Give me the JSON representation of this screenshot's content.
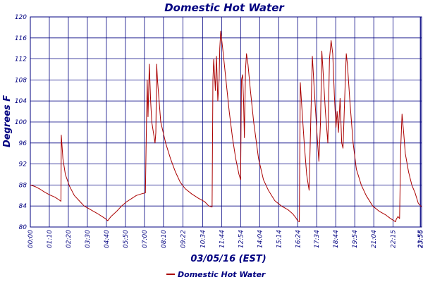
{
  "chart_data": {
    "type": "line",
    "title": "Domestic Hot Water",
    "xlabel": "03/05/16 (EST)",
    "ylabel": "Degrees F",
    "ylim": [
      80,
      120
    ],
    "yticks": [
      80,
      84,
      88,
      92,
      96,
      100,
      104,
      108,
      112,
      116,
      120
    ],
    "x_unit": "hours",
    "xlim": [
      0,
      24
    ],
    "xticks": [
      {
        "label": "00:00",
        "x": 0
      },
      {
        "label": "01:10",
        "x": 1.1667
      },
      {
        "label": "02:20",
        "x": 2.3333
      },
      {
        "label": "03:30",
        "x": 3.5
      },
      {
        "label": "04:40",
        "x": 4.6667
      },
      {
        "label": "05:50",
        "x": 5.8333
      },
      {
        "label": "07:00",
        "x": 7.0
      },
      {
        "label": "08:10",
        "x": 8.1667
      },
      {
        "label": "09:22",
        "x": 9.3667
      },
      {
        "label": "10:34",
        "x": 10.5667
      },
      {
        "label": "11:44",
        "x": 11.7333
      },
      {
        "label": "12:54",
        "x": 12.9
      },
      {
        "label": "14:04",
        "x": 14.0667
      },
      {
        "label": "15:14",
        "x": 15.2333
      },
      {
        "label": "16:24",
        "x": 16.4
      },
      {
        "label": "17:34",
        "x": 17.5667
      },
      {
        "label": "18:44",
        "x": 18.7333
      },
      {
        "label": "19:54",
        "x": 19.9
      },
      {
        "label": "21:04",
        "x": 21.0667
      },
      {
        "label": "22:15",
        "x": 22.25
      },
      {
        "label": "23:55",
        "x": 23.9167
      },
      {
        "label": "23:56",
        "x": 23.9333
      }
    ],
    "grid": true,
    "legend_position": "bottom",
    "series": [
      {
        "name": "Domestic Hot Water",
        "color": "#aa0000",
        "points": [
          [
            0.0,
            88.0
          ],
          [
            0.3,
            87.7
          ],
          [
            0.6,
            87.2
          ],
          [
            0.9,
            86.6
          ],
          [
            1.2,
            86.1
          ],
          [
            1.5,
            85.7
          ],
          [
            1.75,
            85.2
          ],
          [
            1.88,
            84.9
          ],
          [
            1.9,
            97.5
          ],
          [
            2.0,
            93.0
          ],
          [
            2.15,
            90.0
          ],
          [
            2.4,
            87.8
          ],
          [
            2.7,
            86.0
          ],
          [
            3.0,
            85.0
          ],
          [
            3.3,
            84.0
          ],
          [
            3.7,
            83.3
          ],
          [
            4.1,
            82.6
          ],
          [
            4.4,
            82.0
          ],
          [
            4.6,
            81.6
          ],
          [
            4.75,
            81.2
          ],
          [
            4.95,
            82.0
          ],
          [
            5.3,
            83.0
          ],
          [
            5.6,
            84.0
          ],
          [
            5.9,
            84.8
          ],
          [
            6.2,
            85.4
          ],
          [
            6.5,
            86.0
          ],
          [
            6.8,
            86.3
          ],
          [
            7.06,
            86.5
          ],
          [
            7.1,
            95.0
          ],
          [
            7.17,
            108.0
          ],
          [
            7.22,
            101.0
          ],
          [
            7.3,
            111.0
          ],
          [
            7.38,
            104.0
          ],
          [
            7.45,
            100.0
          ],
          [
            7.55,
            98.0
          ],
          [
            7.65,
            96.0
          ],
          [
            7.7,
            98.0
          ],
          [
            7.75,
            111.0
          ],
          [
            7.8,
            108.0
          ],
          [
            7.9,
            104.0
          ],
          [
            8.0,
            100.0
          ],
          [
            8.3,
            96.0
          ],
          [
            8.6,
            93.0
          ],
          [
            8.9,
            90.5
          ],
          [
            9.2,
            88.5
          ],
          [
            9.5,
            87.3
          ],
          [
            9.9,
            86.3
          ],
          [
            10.3,
            85.5
          ],
          [
            10.7,
            84.8
          ],
          [
            10.95,
            84.0
          ],
          [
            11.15,
            83.8
          ],
          [
            11.2,
            108.0
          ],
          [
            11.25,
            112.0
          ],
          [
            11.35,
            106.0
          ],
          [
            11.42,
            112.5
          ],
          [
            11.5,
            104.0
          ],
          [
            11.58,
            108.0
          ],
          [
            11.62,
            114.0
          ],
          [
            11.68,
            117.3
          ],
          [
            11.8,
            114.0
          ],
          [
            12.0,
            108.0
          ],
          [
            12.2,
            102.0
          ],
          [
            12.4,
            97.0
          ],
          [
            12.6,
            93.0
          ],
          [
            12.8,
            90.0
          ],
          [
            12.9,
            89.0
          ],
          [
            12.95,
            108.0
          ],
          [
            13.02,
            109.0
          ],
          [
            13.08,
            104.0
          ],
          [
            13.13,
            97.0
          ],
          [
            13.2,
            110.0
          ],
          [
            13.26,
            113.0
          ],
          [
            13.35,
            111.0
          ],
          [
            13.5,
            106.0
          ],
          [
            13.7,
            100.0
          ],
          [
            14.0,
            93.0
          ],
          [
            14.3,
            89.0
          ],
          [
            14.6,
            87.0
          ],
          [
            15.0,
            85.0
          ],
          [
            15.4,
            84.0
          ],
          [
            15.8,
            83.3
          ],
          [
            16.1,
            82.5
          ],
          [
            16.3,
            81.7
          ],
          [
            16.4,
            81.2
          ],
          [
            16.5,
            81.0
          ],
          [
            16.56,
            107.5
          ],
          [
            16.65,
            103.0
          ],
          [
            16.8,
            96.0
          ],
          [
            16.95,
            90.0
          ],
          [
            17.1,
            87.0
          ],
          [
            17.2,
            100.0
          ],
          [
            17.3,
            112.5
          ],
          [
            17.4,
            107.0
          ],
          [
            17.5,
            102.0
          ],
          [
            17.6,
            97.0
          ],
          [
            17.7,
            92.5
          ],
          [
            17.8,
            100.0
          ],
          [
            17.88,
            113.5
          ],
          [
            17.95,
            110.0
          ],
          [
            18.1,
            102.0
          ],
          [
            18.25,
            96.0
          ],
          [
            18.35,
            112.0
          ],
          [
            18.45,
            115.5
          ],
          [
            18.55,
            113.0
          ],
          [
            18.65,
            105.0
          ],
          [
            18.75,
            99.0
          ],
          [
            18.82,
            102.0
          ],
          [
            18.9,
            98.0
          ],
          [
            19.0,
            104.5
          ],
          [
            19.1,
            96.0
          ],
          [
            19.18,
            95.0
          ],
          [
            19.3,
            106.0
          ],
          [
            19.38,
            113.0
          ],
          [
            19.45,
            111.0
          ],
          [
            19.6,
            104.0
          ],
          [
            19.8,
            96.0
          ],
          [
            20.0,
            91.0
          ],
          [
            20.3,
            88.0
          ],
          [
            20.6,
            86.0
          ],
          [
            21.0,
            84.0
          ],
          [
            21.4,
            83.0
          ],
          [
            21.8,
            82.3
          ],
          [
            22.1,
            81.6
          ],
          [
            22.3,
            81.2
          ],
          [
            22.4,
            81.0
          ],
          [
            22.45,
            81.5
          ],
          [
            22.55,
            82.0
          ],
          [
            22.65,
            81.6
          ],
          [
            22.72,
            95.0
          ],
          [
            22.8,
            101.5
          ],
          [
            22.9,
            98.0
          ],
          [
            23.0,
            94.0
          ],
          [
            23.2,
            90.5
          ],
          [
            23.4,
            88.0
          ],
          [
            23.6,
            86.5
          ],
          [
            23.8,
            84.5
          ],
          [
            24.0,
            83.8
          ]
        ]
      }
    ]
  }
}
